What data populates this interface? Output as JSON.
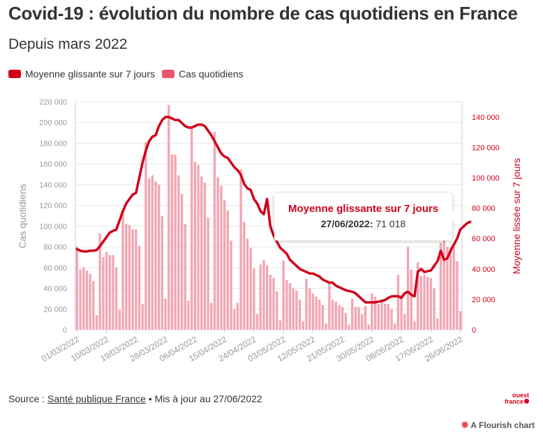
{
  "title": "Covid-19 : évolution du nombre de cas quotidiens en France",
  "subtitle": "Depuis mars 2022",
  "legend": {
    "items": [
      {
        "label": "Moyenne glissante sur 7 jours",
        "color": "#d0001b"
      },
      {
        "label": "Cas quotidiens",
        "color": "#e8556b"
      }
    ]
  },
  "tooltip": {
    "title": "Moyenne glissante sur 7 jours",
    "date": "27/06/2022:",
    "value": "71 018"
  },
  "footer": {
    "source_prefix": "Source : ",
    "source_link": "Santé publique France",
    "separator": " • ",
    "updated": "Mis à jour au 27/06/2022"
  },
  "logo": {
    "line1": "ouest",
    "line2": "france"
  },
  "flourish": {
    "star": "✹",
    "label": "A Flourish chart"
  },
  "chart_data": {
    "type": "bar+line",
    "x_tick_labels": [
      "01/03/2022",
      "10/03/2022",
      "19/03/2022",
      "28/03/2022",
      "06/04/2022",
      "15/04/2022",
      "24/04/2022",
      "03/05/2022",
      "12/05/2022",
      "21/05/2022",
      "30/05/2022",
      "08/06/2022",
      "17/06/2022",
      "26/06/2022"
    ],
    "left_axis": {
      "label": "Cas quotidiens",
      "min": 0,
      "max": 220000,
      "ticks": [
        "0",
        "20 000",
        "40 000",
        "60 000",
        "80 000",
        "100 000",
        "120 000",
        "140 000",
        "160 000",
        "180 000",
        "200 000",
        "220 000"
      ],
      "tick_values": [
        0,
        20000,
        40000,
        60000,
        80000,
        100000,
        120000,
        140000,
        160000,
        180000,
        200000,
        220000
      ]
    },
    "right_axis": {
      "label": "Moyenne lissée sur 7 jours",
      "min": 0,
      "max": 150000,
      "ticks": [
        "0",
        "20 000",
        "40 000",
        "60 000",
        "80 000",
        "100 000",
        "120 000",
        "140 000"
      ],
      "tick_values": [
        0,
        20000,
        40000,
        60000,
        80000,
        100000,
        120000,
        140000
      ]
    },
    "series": [
      {
        "name": "Cas quotidiens",
        "axis": "left",
        "color": "#f1a7b3",
        "values": [
          80000,
          58000,
          60000,
          57000,
          54000,
          47000,
          14000,
          93000,
          70000,
          75000,
          72000,
          72000,
          60000,
          19000,
          116000,
          102000,
          101000,
          97000,
          97000,
          81000,
          25000,
          181000,
          146000,
          149000,
          143000,
          140000,
          110000,
          30000,
          217000,
          169000,
          169000,
          149000,
          131000,
          102000,
          28000,
          196000,
          162000,
          159000,
          148000,
          142000,
          108000,
          26000,
          191000,
          147000,
          139000,
          125000,
          115000,
          86000,
          20000,
          26000,
          155000,
          104000,
          88000,
          79000,
          59000,
          15000,
          63000,
          67000,
          62000,
          53000,
          50000,
          37000,
          9000,
          67000,
          48000,
          45000,
          40000,
          38000,
          29000,
          8000,
          49000,
          40000,
          35000,
          32000,
          29000,
          24000,
          6000,
          46000,
          29000,
          27000,
          24000,
          22000,
          16000,
          5000,
          30000,
          22000,
          22000,
          15000,
          23000,
          5000,
          35000,
          32000,
          25000,
          27000,
          25000,
          25000,
          20000,
          6000,
          53000,
          34000,
          15000,
          80000,
          58000,
          8000,
          65000,
          52000,
          53000,
          51000,
          50000,
          40000,
          11000,
          84000,
          93000,
          80000,
          80000,
          80000,
          66000,
          18000
        ]
      },
      {
        "name": "Moyenne glissante sur 7 jours",
        "axis": "right",
        "color": "#d0001b",
        "values": [
          53000,
          52000,
          51500,
          51500,
          52000,
          52000,
          52500,
          55000,
          58000,
          61000,
          64000,
          65000,
          66000,
          72000,
          78000,
          83000,
          86000,
          89000,
          90000,
          100000,
          110000,
          118000,
          124000,
          127000,
          128000,
          134000,
          138000,
          140000,
          140000,
          139000,
          138000,
          138000,
          136000,
          134000,
          133000,
          133000,
          134000,
          135000,
          135000,
          134000,
          131000,
          128000,
          124000,
          120000,
          116000,
          114000,
          113000,
          110000,
          107000,
          105000,
          102000,
          96000,
          93000,
          92000,
          86000,
          83000,
          78000,
          76000,
          86000,
          68000,
          62000,
          58000,
          54000,
          52000,
          50000,
          46000,
          44000,
          42000,
          40000,
          39000,
          38000,
          37000,
          37000,
          36000,
          35000,
          33000,
          32000,
          31000,
          31000,
          29000,
          28000,
          27000,
          26000,
          25500,
          25000,
          24000,
          22000,
          20000,
          18000,
          18000,
          18000,
          18000,
          18500,
          19000,
          19500,
          21000,
          22000,
          22000,
          22000,
          21000,
          24000,
          25000,
          23000,
          22000,
          38000,
          40000,
          38000,
          38500,
          39000,
          42000,
          45000,
          52000,
          46000,
          47000,
          52000,
          56000,
          60000,
          66000,
          68000,
          70000,
          71000
        ]
      }
    ]
  }
}
